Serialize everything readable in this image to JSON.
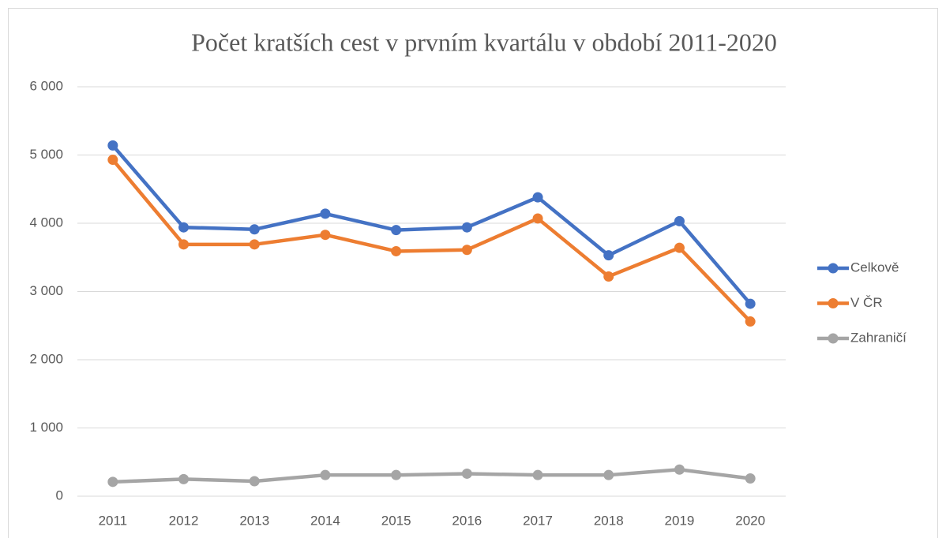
{
  "chart_data": {
    "type": "line",
    "title": "Počet kratších cest v prvním kvartálu v období 2011-2020",
    "categories": [
      "2011",
      "2012",
      "2013",
      "2014",
      "2015",
      "2016",
      "2017",
      "2018",
      "2019",
      "2020"
    ],
    "series": [
      {
        "name": "Celkově",
        "color": "#4472c4",
        "values": [
          5140,
          3940,
          3910,
          4140,
          3900,
          3940,
          4380,
          3530,
          4030,
          2820
        ]
      },
      {
        "name": "V ČR",
        "color": "#ed7d31",
        "values": [
          4930,
          3690,
          3690,
          3830,
          3590,
          3610,
          4070,
          3220,
          3640,
          2560
        ]
      },
      {
        "name": "Zahraničí",
        "color": "#a5a5a5",
        "values": [
          210,
          250,
          220,
          310,
          310,
          330,
          310,
          310,
          390,
          260
        ]
      }
    ],
    "ylim": [
      0,
      6000
    ],
    "yticks": [
      0,
      {
        "value": 1000,
        "label": "1 000"
      },
      {
        "value": 2000,
        "label": "2 000"
      },
      {
        "value": 3000,
        "label": "3 000"
      },
      {
        "value": 4000,
        "label": "4 000"
      },
      {
        "value": 5000,
        "label": "5 000"
      },
      {
        "value": 6000,
        "label": "6 000"
      }
    ],
    "grid": true,
    "legend": "right"
  }
}
